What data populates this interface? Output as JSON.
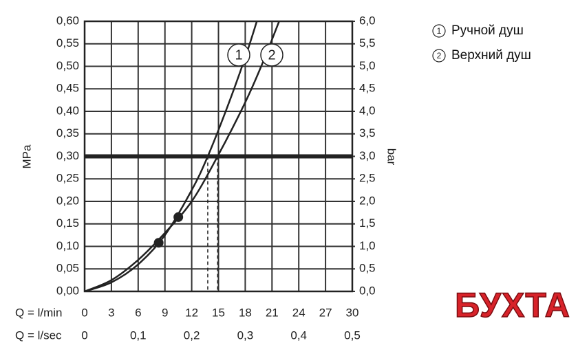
{
  "chart_data": {
    "type": "line",
    "x_label": "Q = l/min",
    "x2_label": "Q = l/sec",
    "y_label": "MPa",
    "y2_label": "bar",
    "xlim": [
      0,
      30
    ],
    "xticks": [
      0,
      3,
      6,
      9,
      12,
      15,
      18,
      21,
      24,
      27,
      30
    ],
    "x2lim": [
      0,
      0.5
    ],
    "x2ticks": [
      0,
      {
        "value": 0.1,
        "label": "0,1"
      },
      {
        "value": 0.2,
        "label": "0,2"
      },
      {
        "value": 0.3,
        "label": "0,3"
      },
      {
        "value": 0.4,
        "label": "0,4"
      },
      {
        "value": 0.5,
        "label": "0,5"
      }
    ],
    "ylim": [
      0,
      0.6
    ],
    "yticks": [
      {
        "value": 0,
        "label": "0,00"
      },
      {
        "value": 0.05,
        "label": "0,05"
      },
      {
        "value": 0.1,
        "label": "0,10"
      },
      {
        "value": 0.15,
        "label": "0,15"
      },
      {
        "value": 0.2,
        "label": "0,20"
      },
      {
        "value": 0.25,
        "label": "0,25"
      },
      {
        "value": 0.3,
        "label": "0,30"
      },
      {
        "value": 0.35,
        "label": "0,35"
      },
      {
        "value": 0.4,
        "label": "0,40"
      },
      {
        "value": 0.45,
        "label": "0,45"
      },
      {
        "value": 0.5,
        "label": "0,50"
      },
      {
        "value": 0.55,
        "label": "0,55"
      },
      {
        "value": 0.6,
        "label": "0,60"
      }
    ],
    "y2lim": [
      0,
      6
    ],
    "y2ticks": [
      {
        "value": 0,
        "label": "0,0"
      },
      {
        "value": 0.5,
        "label": "0,5"
      },
      {
        "value": 1,
        "label": "1,0"
      },
      {
        "value": 1.5,
        "label": "1,5"
      },
      {
        "value": 2,
        "label": "2,0"
      },
      {
        "value": 2.5,
        "label": "2,5"
      },
      {
        "value": 3,
        "label": "3,0"
      },
      {
        "value": 3.5,
        "label": "3,5"
      },
      {
        "value": 4,
        "label": "4,0"
      },
      {
        "value": 4.5,
        "label": "4,5"
      },
      {
        "value": 5,
        "label": "5,0"
      },
      {
        "value": 5.5,
        "label": "5,5"
      },
      {
        "value": 6,
        "label": "6,0"
      }
    ],
    "grid": true,
    "reference_line": 0.3,
    "series": [
      {
        "name": "Ручной душ",
        "label": "1",
        "color": "#222222",
        "x": [
          0,
          3,
          6,
          9,
          12,
          13.8,
          16,
          18,
          19.3
        ],
        "values": [
          0,
          0.02,
          0.06,
          0.125,
          0.225,
          0.3,
          0.41,
          0.52,
          0.6
        ]
      },
      {
        "name": "Верхний душ",
        "label": "2",
        "color": "#222222",
        "x": [
          0,
          3,
          6,
          9,
          12,
          14.9,
          18,
          20,
          21.8
        ],
        "values": [
          0,
          0.025,
          0.07,
          0.13,
          0.2,
          0.3,
          0.42,
          0.51,
          0.6
        ]
      }
    ],
    "markers": {
      "x": [
        8.3,
        10.5
      ],
      "values": [
        0.108,
        0.165
      ]
    },
    "watermark": "БУХТА"
  }
}
